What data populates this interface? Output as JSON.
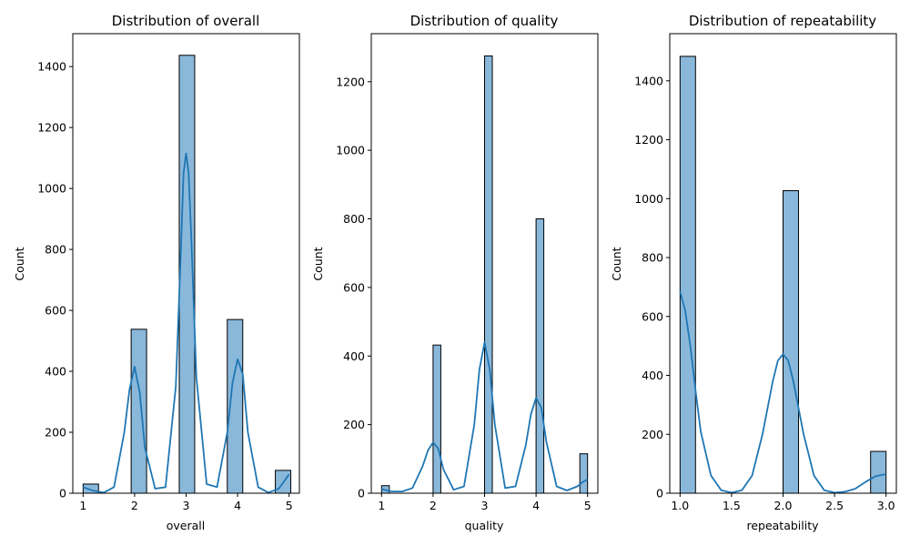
{
  "chart_data": [
    {
      "type": "bar",
      "title": "Distribution of overall",
      "xlabel": "overall",
      "ylabel": "Count",
      "xlim": [
        0.8,
        5.2
      ],
      "ylim": [
        0,
        1508
      ],
      "xticks": [
        1,
        2,
        3,
        4,
        5
      ],
      "yticks": [
        0,
        200,
        400,
        600,
        800,
        1000,
        1200,
        1400
      ],
      "bars": [
        {
          "x0": 1.0,
          "x1": 1.3,
          "value": 30
        },
        {
          "x0": 1.933,
          "x1": 2.233,
          "value": 538
        },
        {
          "x0": 2.867,
          "x1": 3.167,
          "value": 1437
        },
        {
          "x0": 3.8,
          "x1": 4.1,
          "value": 570
        },
        {
          "x0": 4.733,
          "x1": 5.033,
          "value": 75
        }
      ],
      "kde": {
        "x": [
          1.0,
          1.2,
          1.4,
          1.6,
          1.8,
          1.9,
          2.0,
          2.1,
          2.2,
          2.4,
          2.6,
          2.8,
          2.9,
          2.95,
          3.0,
          3.05,
          3.1,
          3.2,
          3.4,
          3.6,
          3.8,
          3.9,
          4.0,
          4.1,
          4.2,
          4.4,
          4.6,
          4.8,
          4.9,
          5.0
        ],
        "y": [
          20,
          8,
          2,
          20,
          200,
          340,
          415,
          330,
          150,
          15,
          20,
          350,
          800,
          1050,
          1115,
          1050,
          840,
          380,
          30,
          20,
          200,
          360,
          440,
          390,
          200,
          20,
          2,
          15,
          38,
          62
        ]
      },
      "bar_color": "#8ab8db",
      "line_color": "#1f77b4"
    },
    {
      "type": "bar",
      "title": "Distribution of quality",
      "xlabel": "quality",
      "ylabel": "Count",
      "xlim": [
        0.8,
        5.2
      ],
      "ylim": [
        0,
        1340
      ],
      "xticks": [
        1,
        2,
        3,
        4,
        5
      ],
      "yticks": [
        0,
        200,
        400,
        600,
        800,
        1000,
        1200
      ],
      "bars": [
        {
          "x0": 1.0,
          "x1": 1.15,
          "value": 22
        },
        {
          "x0": 2.0,
          "x1": 2.15,
          "value": 432
        },
        {
          "x0": 3.0,
          "x1": 3.15,
          "value": 1275
        },
        {
          "x0": 4.0,
          "x1": 4.15,
          "value": 800
        },
        {
          "x0": 4.85,
          "x1": 5.0,
          "value": 115
        }
      ],
      "kde": {
        "x": [
          1.0,
          1.2,
          1.4,
          1.6,
          1.8,
          1.9,
          2.0,
          2.1,
          2.2,
          2.4,
          2.6,
          2.8,
          2.9,
          3.0,
          3.1,
          3.2,
          3.4,
          3.6,
          3.8,
          3.9,
          4.0,
          4.1,
          4.2,
          4.4,
          4.6,
          4.8,
          4.9,
          5.0
        ],
        "y": [
          12,
          5,
          5,
          15,
          80,
          125,
          148,
          130,
          70,
          10,
          20,
          200,
          360,
          440,
          360,
          200,
          15,
          20,
          140,
          230,
          278,
          250,
          150,
          20,
          8,
          20,
          32,
          40
        ]
      },
      "bar_color": "#8ab8db",
      "line_color": "#1f77b4"
    },
    {
      "type": "bar",
      "title": "Distribution of repeatability",
      "xlabel": "repeatability",
      "ylabel": "Count",
      "xlim": [
        0.9,
        3.1
      ],
      "ylim": [
        0,
        1560
      ],
      "xticks": [
        "1.0",
        "1.5",
        "2.0",
        "2.5",
        "3.0"
      ],
      "yticks": [
        0,
        200,
        400,
        600,
        800,
        1000,
        1200,
        1400
      ],
      "bars": [
        {
          "x0": 1.0,
          "x1": 1.15,
          "value": 1483
        },
        {
          "x0": 2.0,
          "x1": 2.15,
          "value": 1027
        },
        {
          "x0": 2.85,
          "x1": 3.0,
          "value": 142
        }
      ],
      "kde": {
        "x": [
          1.0,
          1.05,
          1.1,
          1.15,
          1.2,
          1.3,
          1.4,
          1.5,
          1.6,
          1.7,
          1.8,
          1.9,
          1.95,
          2.0,
          2.05,
          2.1,
          2.2,
          2.3,
          2.4,
          2.5,
          2.6,
          2.7,
          2.8,
          2.9,
          3.0
        ],
        "y": [
          685,
          620,
          500,
          350,
          210,
          60,
          10,
          2,
          10,
          60,
          200,
          380,
          450,
          472,
          450,
          380,
          200,
          60,
          10,
          2,
          5,
          15,
          38,
          58,
          65
        ]
      },
      "bar_color": "#8ab8db",
      "line_color": "#1f77b4"
    }
  ]
}
